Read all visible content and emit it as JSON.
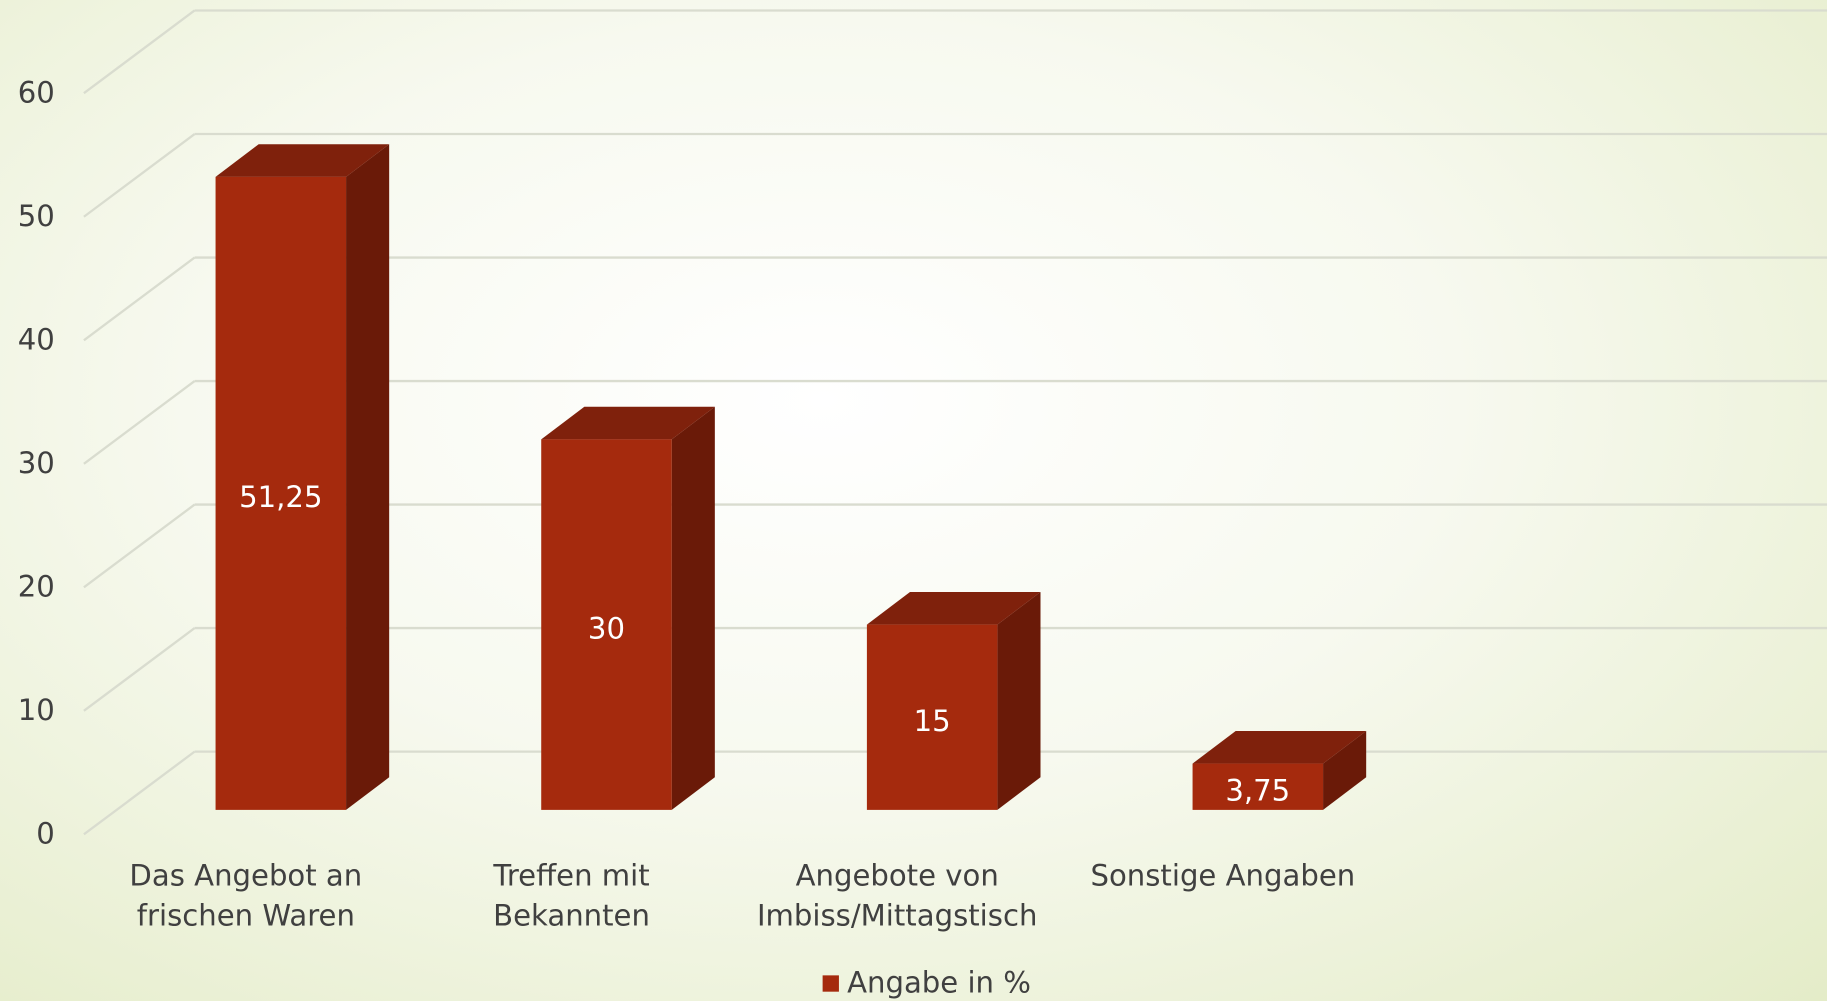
{
  "chart_data": {
    "type": "bar3d",
    "categories": [
      "Das Angebot an frischen Waren",
      "Treffen mit Bekannten",
      "Angebote von Imbiss/Mittagstisch",
      "Sonstige Angaben"
    ],
    "series": [
      {
        "name": "Angabe in %",
        "color": "#a52a0d",
        "values": [
          51.25,
          30,
          15,
          3.75
        ],
        "value_labels": [
          "51,25",
          "30",
          "15",
          "3,75"
        ]
      }
    ],
    "ylim": [
      0,
      60
    ],
    "yticks": [
      0,
      10,
      20,
      30,
      40,
      50,
      60
    ],
    "grid": true,
    "legend": "bottom"
  }
}
